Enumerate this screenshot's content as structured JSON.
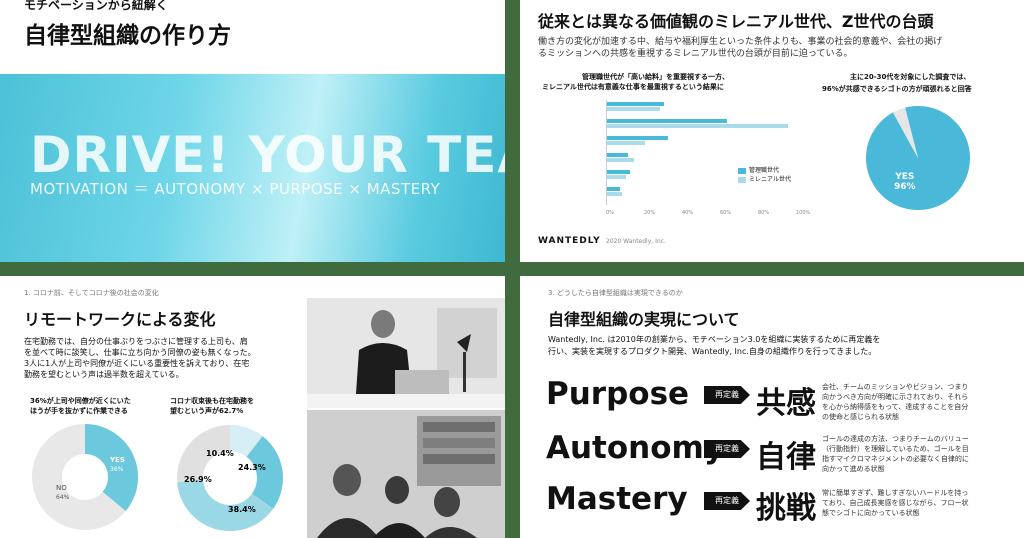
{
  "slide1": {
    "kicker": "モチベーションから紐解く",
    "title": "自律型組織の作り方",
    "hero_title": "DRIVE! YOUR TEAM",
    "hero_sub": "MOTIVATION ＝ AUTONOMY × PURPOSE × MASTERY"
  },
  "slide2": {
    "title": "従来とは異なる価値観のミレニアル世代、Z世代の台頭",
    "body_line1": "働き方の変化が加速する中、給与や福利厚生といった条件よりも、事業の社会的意義や、会社の掲げ",
    "body_line2": "るミッションへの共感を重視するミレニアル世代の台頭が目前に迫っている。",
    "chart1_title_line1": "管理職世代が「高い給料」を重要視する一方、",
    "chart1_title_line2": "ミレニアル世代は有意義な仕事を最重視するという結果に",
    "chart2_title_line1": "主に20-30代を対象にした調査では、",
    "chart2_title_line2": "96%が共感できるシゴトの方が頑張れると回答",
    "legend": [
      "管理職世代",
      "ミレニアル世代"
    ],
    "pie_label": "YES",
    "pie_value": "96%",
    "footer": "2020 Wantedly, Inc.",
    "logo": "WANTEDLY"
  },
  "slide3": {
    "kicker": "1. コロナ前、そしてコロナ後の社会の変化",
    "title": "リモートワークによる変化",
    "body_line1": "在宅勤務では、自分の仕事ぶりをつぶさに管理する上司も、肩",
    "body_line2": "を並べて時に談笑し、仕事に立ち向かう同僚の姿も無くなった。",
    "body_line3": "3人に1人が上司や同僚が近くにいる重要性を訴えており、在宅",
    "body_line4": "勤務を望むという声は過半数を超えている。",
    "stat1_line1": "36%が上司や同僚が近くにいた",
    "stat1_line2": "ほうが手を抜かずに作業できる",
    "stat2_line1": "コロナ収束後も在宅勤務を",
    "stat2_line2": "望むという声が62.7%",
    "donut1": {
      "yes": "YES",
      "yes_val": "36%",
      "no": "NO",
      "no_val": "64%"
    },
    "donut2": {
      "a": "10.4%",
      "b": "24.3%",
      "c": "26.9%",
      "d": "38.4%"
    }
  },
  "slide4": {
    "kicker": "3. どうしたら自律型組織は実現できるのか",
    "title": "自律型組織の実現について",
    "body_line1": "Wantedly, Inc. は2010年の創業から、モチベーション3.0を組織に実装するために再定義を",
    "body_line2": "行い、実装を実現するプロダクト開発、Wantedly, Inc.自身の組織作りを行ってきました。",
    "rows": [
      {
        "word": "Purpose",
        "tag": "再定義",
        "kanji": "共感",
        "desc": "会社、チームのミッションやビジョン、つまり向かうべき方向が明確に示されており、それらを心から納得感をもって、達成することを自分の使命と感じられる状態"
      },
      {
        "word": "Autonomy",
        "tag": "再定義",
        "kanji": "自律",
        "desc": "ゴールの達成の方法、つまりチームのバリュー（行動指針）を理解しているため、ゴールを目指すマイクロマネジメントの必要なく自律的に向かって進める状態"
      },
      {
        "word": "Mastery",
        "tag": "再定義",
        "kanji": "挑戦",
        "desc": "常に簡単すぎず、難しすぎないハードルを持っており、自己成長実感を感じながら、フロー状態でシゴトに向かっている状態"
      }
    ]
  },
  "chart_data": [
    {
      "type": "bar",
      "categories": [
        "",
        "",
        "",
        "",
        "",
        ""
      ],
      "series": [
        {
          "name": "管理職世代",
          "values": [
            30,
            63,
            32,
            11,
            12,
            7
          ]
        },
        {
          "name": "ミレニアル世代",
          "values": [
            28,
            95,
            20,
            14,
            10,
            8
          ]
        }
      ],
      "xlim": [
        0,
        100
      ],
      "xticks": [
        "0%",
        "20%",
        "40%",
        "60%",
        "80%",
        "100%"
      ]
    },
    {
      "type": "pie",
      "categories": [
        "YES",
        ""
      ],
      "values": [
        96,
        4
      ]
    }
  ],
  "colors": {
    "accent": "#4ab8d8",
    "accent_light": "#a8dcea",
    "dark": "#111111",
    "frame": "#3f6b3f"
  }
}
